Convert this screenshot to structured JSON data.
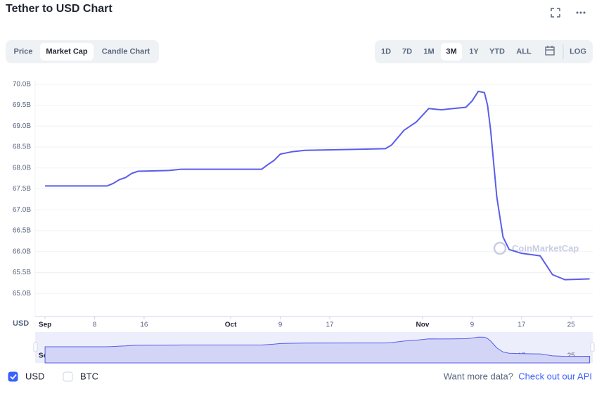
{
  "header": {
    "title": "Tether to USD Chart"
  },
  "tabs": {
    "items": [
      "Price",
      "Market Cap",
      "Candle Chart"
    ],
    "active": 1
  },
  "ranges": {
    "items": [
      "1D",
      "7D",
      "1M",
      "3M",
      "1Y",
      "YTD",
      "ALL"
    ],
    "active": 3,
    "log": "LOG"
  },
  "chart_data": {
    "type": "line",
    "ylabel": "USD",
    "color": "#5a5dea",
    "grid": true,
    "x": [
      0,
      10,
      11,
      12,
      13,
      14,
      15,
      20,
      22,
      35,
      36,
      37,
      38,
      40,
      42,
      55,
      56,
      58,
      60,
      62,
      64,
      68,
      69,
      70,
      71,
      71.5,
      72,
      72.5,
      73,
      74,
      75,
      77,
      80,
      82,
      84,
      88
    ],
    "values": [
      67.57,
      67.57,
      67.63,
      67.72,
      67.77,
      67.87,
      67.92,
      67.94,
      67.97,
      67.97,
      68.08,
      68.18,
      68.33,
      68.39,
      68.42,
      68.46,
      68.55,
      68.9,
      69.1,
      69.42,
      69.39,
      69.45,
      69.6,
      69.83,
      69.8,
      69.5,
      68.9,
      68.1,
      67.3,
      66.35,
      66.05,
      65.96,
      65.9,
      65.45,
      65.33,
      65.35
    ],
    "xlim": [
      -1.6,
      88.5
    ],
    "ylim": [
      64.45,
      70.03
    ],
    "xticks": [
      {
        "value": 0,
        "label": "Sep"
      },
      8,
      16,
      {
        "value": 30,
        "label": "Oct"
      },
      {
        "value": 38,
        "label": "9"
      },
      {
        "value": 46,
        "label": "17"
      },
      {
        "value": 61,
        "label": "Nov"
      },
      {
        "value": 69,
        "label": "9"
      },
      {
        "value": 77,
        "label": "17"
      },
      {
        "value": 85,
        "label": "25"
      }
    ],
    "yticks": [
      {
        "value": 65.0,
        "label": "65.0B"
      },
      {
        "value": 65.5,
        "label": "65.5B"
      },
      {
        "value": 66.0,
        "label": "66.0B"
      },
      {
        "value": 66.5,
        "label": "66.5B"
      },
      {
        "value": 67.0,
        "label": "67.0B"
      },
      {
        "value": 67.5,
        "label": "67.5B"
      },
      {
        "value": 68.0,
        "label": "68.0B"
      },
      {
        "value": 68.5,
        "label": "68.5B"
      },
      {
        "value": 69.0,
        "label": "69.0B"
      },
      {
        "value": 69.5,
        "label": "69.5B"
      },
      {
        "value": 70.0,
        "label": "70.0B"
      }
    ],
    "watermark": "CoinMarketCap"
  },
  "legend": {
    "items": [
      {
        "label": "USD",
        "checked": true
      },
      {
        "label": "BTC",
        "checked": false
      }
    ]
  },
  "footer": {
    "prompt": "Want more data?",
    "link": "Check out our API"
  }
}
